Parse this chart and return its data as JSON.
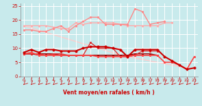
{
  "background_color": "#c8eaec",
  "grid_color": "#b0d8dc",
  "xlabel": "Vent moyen/en rafales ( km/h )",
  "xlabel_color": "#cc0000",
  "tick_color": "#cc0000",
  "xlim": [
    -0.5,
    23.5
  ],
  "ylim": [
    0,
    26
  ],
  "yticks": [
    0,
    5,
    10,
    15,
    20,
    25
  ],
  "xticks": [
    0,
    1,
    2,
    3,
    4,
    5,
    6,
    7,
    8,
    9,
    10,
    11,
    12,
    13,
    14,
    15,
    16,
    17,
    18,
    19,
    20,
    21,
    22,
    23
  ],
  "lines": [
    {
      "x": [
        0,
        1,
        2,
        3,
        4,
        5,
        6,
        7,
        8,
        9,
        10,
        11,
        12,
        13,
        14,
        15,
        16,
        17,
        18,
        19,
        20
      ],
      "y": [
        18,
        18,
        18,
        18,
        17.5,
        17,
        17,
        19,
        18.5,
        19,
        19,
        19,
        19,
        18.5,
        18,
        18,
        18,
        18,
        18,
        19,
        19
      ],
      "color": "#ffaaaa",
      "linewidth": 1.0,
      "marker": "o",
      "markersize": 2.0,
      "zorder": 2
    },
    {
      "x": [
        0,
        1,
        2,
        3,
        4,
        5,
        6,
        7,
        8,
        9,
        10,
        11,
        12,
        13,
        14,
        15,
        16,
        17,
        18,
        19
      ],
      "y": [
        16.5,
        16.5,
        16,
        16,
        17,
        18,
        16,
        18,
        19.5,
        21,
        21,
        18.5,
        18.5,
        18.5,
        18.5,
        24,
        23,
        18.5,
        19,
        19.5
      ],
      "color": "#ff8888",
      "linewidth": 1.0,
      "marker": "o",
      "markersize": 2.0,
      "zorder": 2
    },
    {
      "x": [
        0,
        1,
        2,
        3,
        4,
        5,
        6,
        7,
        8,
        9,
        10,
        11,
        12,
        13,
        14,
        15,
        16,
        17,
        18,
        19,
        20,
        21,
        22
      ],
      "y": [
        18,
        17.2,
        16.4,
        15.6,
        14.8,
        14.0,
        13.2,
        12.4,
        11.6,
        10.8,
        10.0,
        9.2,
        8.4,
        7.6,
        7.0,
        6.5,
        6.0,
        5.5,
        5.0,
        4.5,
        4.0,
        3.5,
        3.0
      ],
      "color": "#ffcccc",
      "linewidth": 1.0,
      "marker": null,
      "markersize": 0,
      "zorder": 1
    },
    {
      "x": [
        0,
        1,
        2,
        3,
        4,
        5,
        6,
        7,
        8,
        9,
        10,
        11,
        12,
        13,
        14,
        15,
        16,
        17,
        18,
        19,
        20,
        21,
        22,
        23
      ],
      "y": [
        8.5,
        9.5,
        8.5,
        9.5,
        9.5,
        9,
        9,
        9,
        10,
        10.5,
        10.5,
        10.5,
        10,
        9.5,
        7,
        9.5,
        9.5,
        9.5,
        9.5,
        7,
        5.5,
        4,
        2.5,
        3
      ],
      "color": "#cc0000",
      "linewidth": 1.5,
      "marker": "o",
      "markersize": 2.5,
      "zorder": 5
    },
    {
      "x": [
        0,
        1,
        2,
        3,
        4,
        5,
        6,
        7,
        8,
        9,
        10,
        11,
        12,
        13,
        14,
        15,
        16,
        17,
        18
      ],
      "y": [
        8,
        8,
        8,
        8,
        8,
        7.5,
        7.5,
        7.5,
        7.5,
        7.5,
        7.5,
        7.5,
        7.5,
        7.5,
        7.5,
        8,
        8,
        8,
        7.5
      ],
      "color": "#990000",
      "linewidth": 1.0,
      "marker": "o",
      "markersize": 2.0,
      "zorder": 4
    },
    {
      "x": [
        0,
        1,
        2,
        3,
        4,
        5,
        6,
        7,
        8,
        9,
        10,
        11,
        12,
        13,
        14,
        15,
        16,
        17,
        18
      ],
      "y": [
        8,
        8,
        8,
        7.5,
        8,
        8,
        7.5,
        7.5,
        7.5,
        12,
        10,
        10,
        10,
        7,
        7,
        7.5,
        9,
        9,
        9
      ],
      "color": "#dd3333",
      "linewidth": 1.0,
      "marker": "o",
      "markersize": 2.0,
      "zorder": 4
    },
    {
      "x": [
        0,
        1,
        2,
        3,
        4,
        5,
        6,
        7,
        8,
        9,
        10,
        11,
        12,
        13,
        14,
        15,
        16,
        17,
        18
      ],
      "y": [
        8,
        8,
        7.5,
        7.5,
        7.5,
        7.5,
        7.5,
        7.5,
        7.5,
        7.5,
        7.5,
        7.5,
        7.5,
        7.5,
        7.5,
        7.5,
        7.5,
        7.5,
        7.5
      ],
      "color": "#aa0000",
      "linewidth": 0.8,
      "marker": null,
      "markersize": 0,
      "zorder": 3
    },
    {
      "x": [
        0,
        1,
        2,
        3,
        4,
        5,
        6,
        7,
        8,
        9,
        10,
        11,
        12,
        13,
        14,
        15,
        16,
        17,
        18,
        19,
        20,
        21,
        22,
        23
      ],
      "y": [
        8,
        8.5,
        7.5,
        7.5,
        7.5,
        7.5,
        7.5,
        7.5,
        7.5,
        7.5,
        7,
        7,
        7,
        7,
        7,
        7.5,
        7.5,
        7.5,
        7.5,
        5,
        5,
        4,
        2.5,
        7
      ],
      "color": "#ff4444",
      "linewidth": 1.2,
      "marker": "o",
      "markersize": 2.0,
      "zorder": 4
    }
  ]
}
